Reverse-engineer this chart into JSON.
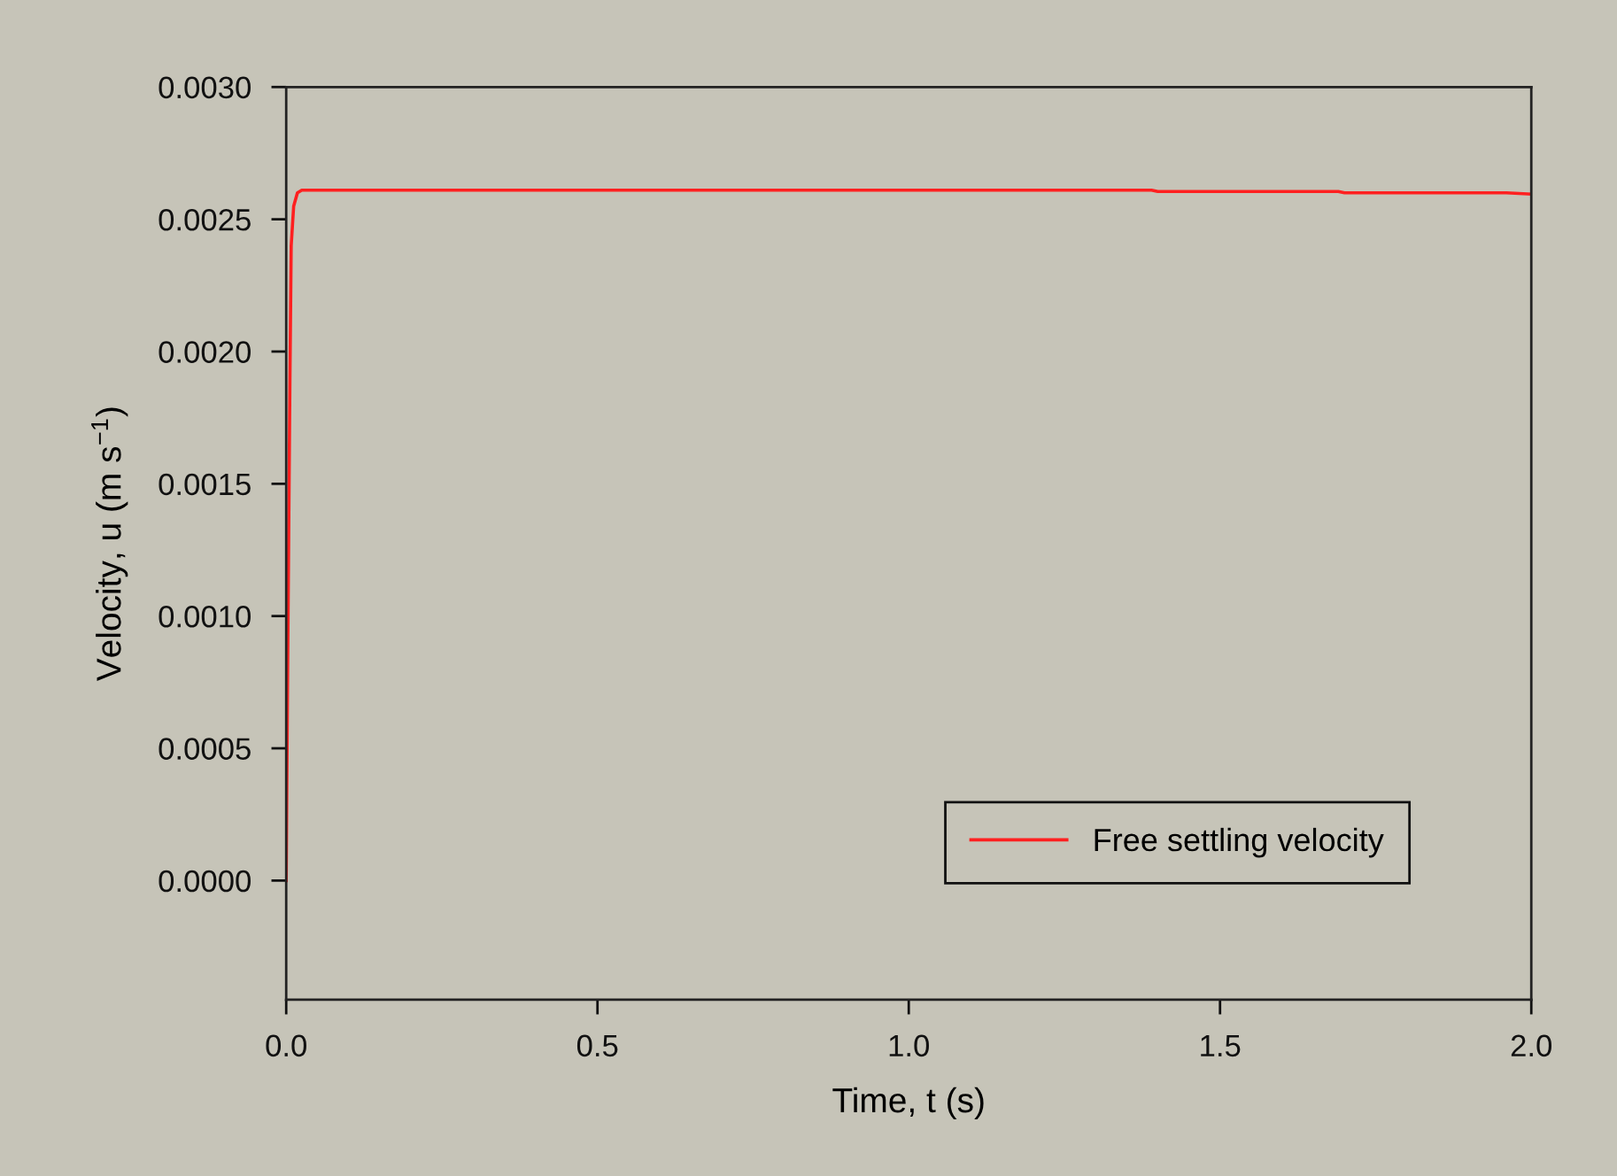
{
  "chart_data": {
    "type": "line",
    "xlabel": "Time, t (s)",
    "ylabel": "Velocity, u (m s$^{−1}$)",
    "series": [
      {
        "name": "Free settling velocity",
        "color": "#ff2020",
        "x": [
          0,
          0.002,
          0.004,
          0.006,
          0.008,
          0.012,
          0.018,
          0.025,
          0.5,
          0.9,
          1.39,
          1.4,
          1.69,
          1.7,
          1.96,
          2.0
        ],
        "values": [
          0,
          0.0007,
          0.0013,
          0.0019,
          0.0024,
          0.00255,
          0.0026,
          0.00261,
          0.00261,
          0.00261,
          0.00261,
          0.002605,
          0.002605,
          0.0026,
          0.0026,
          0.002595
        ]
      }
    ],
    "xlim": [
      0,
      2.0
    ],
    "ylim": [
      -0.00045,
      0.003
    ],
    "xticks": [
      {
        "value": 0,
        "label": "0.0"
      },
      {
        "value": 0.5,
        "label": "0.5"
      },
      {
        "value": 1.0,
        "label": "1.0"
      },
      {
        "value": 1.5,
        "label": "1.5"
      },
      {
        "value": 2.0,
        "label": "2.0"
      }
    ],
    "yticks": [
      {
        "value": 0,
        "label": "0.0000"
      },
      {
        "value": 0.0005,
        "label": "0.0005"
      },
      {
        "value": 0.001,
        "label": "0.0010"
      },
      {
        "value": 0.0015,
        "label": "0.0015"
      },
      {
        "value": 0.002,
        "label": "0.0020"
      },
      {
        "value": 0.0025,
        "label": "0.0025"
      },
      {
        "value": 0.003,
        "label": "0.0030"
      }
    ],
    "legend": "bottom right",
    "grid": false,
    "marker": "none",
    "line_style": "solid"
  }
}
